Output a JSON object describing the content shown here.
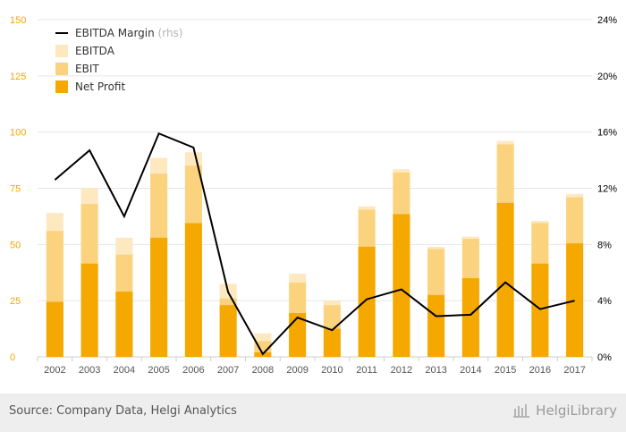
{
  "chart_data": {
    "type": "bar",
    "categories": [
      "2002",
      "2003",
      "2004",
      "2005",
      "2006",
      "2007",
      "2008",
      "2009",
      "2010",
      "2011",
      "2012",
      "2013",
      "2014",
      "2015",
      "2016",
      "2017"
    ],
    "series": [
      {
        "name": "EBITDA",
        "type": "bar-stacked-overlay",
        "color": "#fde8c0",
        "values": [
          64,
          75,
          53,
          88.5,
          91,
          32.5,
          10.5,
          37,
          25,
          67,
          83.5,
          49,
          53.5,
          96,
          60.5,
          72.5
        ]
      },
      {
        "name": "EBIT",
        "type": "bar-stacked-overlay",
        "color": "#fbd37f",
        "values": [
          56,
          68,
          45.5,
          81.5,
          85,
          26,
          7,
          33,
          23,
          65.5,
          82,
          48,
          52.5,
          94.5,
          59.5,
          71
        ]
      },
      {
        "name": "Net Profit",
        "type": "bar-stacked-overlay",
        "color": "#f5a800",
        "values": [
          24.5,
          41.5,
          29,
          53,
          59.5,
          23,
          2,
          19.5,
          12.5,
          49,
          63.5,
          27.5,
          35,
          68.5,
          41.5,
          50.5
        ]
      },
      {
        "name": "EBITDA Margin",
        "axis": "right",
        "type": "line",
        "color": "#000000",
        "values": [
          12.6,
          14.7,
          10,
          15.9,
          14.9,
          4.6,
          0.2,
          2.8,
          1.9,
          4.1,
          4.8,
          2.9,
          3,
          5.3,
          3.4,
          4
        ]
      }
    ],
    "y_left": {
      "min": 0,
      "max": 150,
      "ticks": [
        "0",
        "25",
        "50",
        "75",
        "100",
        "125",
        "150"
      ],
      "color": "#f5a800"
    },
    "y_right": {
      "min": 0,
      "max": 24,
      "ticks": [
        "0%",
        "4%",
        "8%",
        "12%",
        "16%",
        "20%",
        "24%"
      ]
    },
    "grid": true,
    "legend": {
      "placement": "top-left",
      "entries": [
        {
          "label": "EBITDA Margin",
          "suffix": "(rhs)",
          "kind": "line",
          "color": "#000000"
        },
        {
          "label": "EBITDA",
          "kind": "box",
          "color": "#fde8c0"
        },
        {
          "label": "EBIT",
          "kind": "box",
          "color": "#fbd37f"
        },
        {
          "label": "Net Profit",
          "kind": "box",
          "color": "#f5a800"
        }
      ]
    }
  },
  "footer": {
    "source": "Source: Company Data, Helgi Analytics",
    "brand": "HelgiLibrary"
  }
}
